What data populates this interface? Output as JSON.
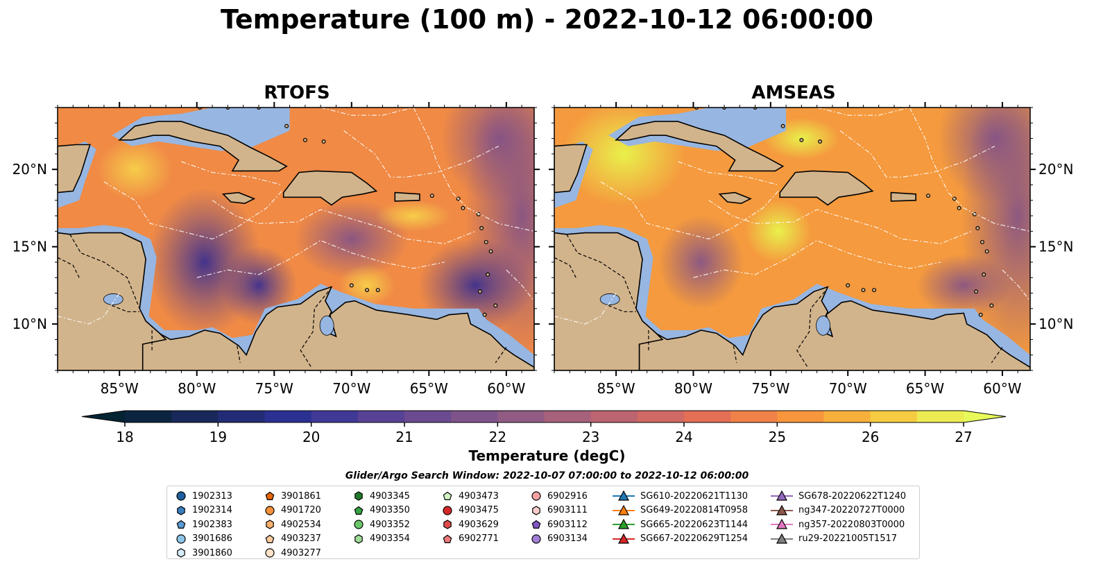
{
  "title": "Temperature (100 m) - 2022-10-12 06:00:00",
  "panels": [
    {
      "name": "rtofs",
      "title": "RTOFS"
    },
    {
      "name": "amseas",
      "title": "AMSEAS"
    }
  ],
  "axes": {
    "lon_ticks": [
      "85°W",
      "80°W",
      "75°W",
      "70°W",
      "65°W",
      "60°W"
    ],
    "lon_values": [
      -85,
      -80,
      -75,
      -70,
      -65,
      -60
    ],
    "lat_ticks": [
      "20°N",
      "15°N",
      "10°N"
    ],
    "lat_values": [
      20,
      15,
      10
    ],
    "lon_range": [
      -89,
      -58.2
    ],
    "lat_range": [
      7,
      24
    ]
  },
  "colorbar": {
    "label": "Temperature (degC)",
    "range": [
      18,
      27
    ],
    "ticks": [
      "18",
      "19",
      "20",
      "21",
      "22",
      "23",
      "24",
      "25",
      "26",
      "27"
    ],
    "extend": "both",
    "colormap": "thermal"
  },
  "colors": {
    "land": "#d2b48c",
    "shallow_water": "#97b6e1"
  },
  "search_window": "Glider/Argo Search Window: 2022-10-07 07:00:00 to 2022-10-12 06:00:00",
  "legend": [
    [
      {
        "label": "1902313",
        "marker": "circle",
        "color": "#1f5f9e"
      },
      {
        "label": "1902314",
        "marker": "hexagon",
        "color": "#3a7dbd"
      },
      {
        "label": "1902383",
        "marker": "pentagon",
        "color": "#5a9bd5"
      },
      {
        "label": "3901686",
        "marker": "circle",
        "color": "#8ec4ea"
      },
      {
        "label": "3901860",
        "marker": "hexagon",
        "color": "#d6ebfa"
      }
    ],
    [
      {
        "label": "3901861",
        "marker": "pentagon",
        "color": "#e6660a"
      },
      {
        "label": "4901720",
        "marker": "circle",
        "color": "#f5913a"
      },
      {
        "label": "4902534",
        "marker": "hexagon",
        "color": "#f9b06e"
      },
      {
        "label": "4903237",
        "marker": "pentagon",
        "color": "#fbcb9c"
      },
      {
        "label": "4903277",
        "marker": "circle",
        "color": "#fde3c6"
      }
    ],
    [
      {
        "label": "4903345",
        "marker": "hexagon",
        "color": "#1e7b2a"
      },
      {
        "label": "4903350",
        "marker": "pentagon",
        "color": "#36a142"
      },
      {
        "label": "4903352",
        "marker": "circle",
        "color": "#6bc66a"
      },
      {
        "label": "4903354",
        "marker": "hexagon",
        "color": "#9fdc97"
      }
    ],
    [
      {
        "label": "4903473",
        "marker": "pentagon",
        "color": "#d2f2c6"
      },
      {
        "label": "4903475",
        "marker": "circle",
        "color": "#d62728"
      },
      {
        "label": "4903629",
        "marker": "hexagon",
        "color": "#e04a4a"
      },
      {
        "label": "6902771",
        "marker": "pentagon",
        "color": "#ec7a7a"
      }
    ],
    [
      {
        "label": "6902916",
        "marker": "circle",
        "color": "#f2a0a0"
      },
      {
        "label": "6903111",
        "marker": "hexagon",
        "color": "#f9cdcd"
      },
      {
        "label": "6903112",
        "marker": "pentagon",
        "color": "#7e57c2"
      },
      {
        "label": "6903134",
        "marker": "circle",
        "color": "#a07fd6"
      }
    ],
    [
      {
        "label": "SG610-20220621T1130",
        "marker": "triangle-line",
        "color": "#1f77b4"
      },
      {
        "label": "SG649-20220814T0958",
        "marker": "triangle-line",
        "color": "#ff7f0e"
      },
      {
        "label": "SG665-20220623T1144",
        "marker": "triangle-line",
        "color": "#2ca02c"
      },
      {
        "label": "SG667-20220629T1254",
        "marker": "triangle-line",
        "color": "#d62728"
      }
    ],
    [
      {
        "label": "SG678-20220622T1240",
        "marker": "triangle-line",
        "color": "#9467bd"
      },
      {
        "label": "ng347-20220727T0000",
        "marker": "triangle-line",
        "color": "#8c564b"
      },
      {
        "label": "ng357-20220803T0000",
        "marker": "triangle-line",
        "color": "#e377c2"
      },
      {
        "label": "ru29-20221005T1517",
        "marker": "triangle-line",
        "color": "#7f7f7f"
      }
    ]
  ]
}
